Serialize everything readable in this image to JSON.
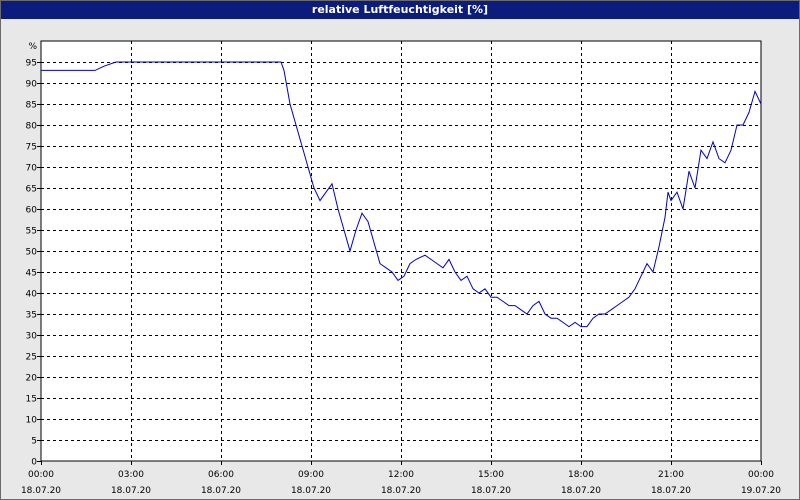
{
  "window": {
    "title": "relative Luftfeuchtigkeit [%]"
  },
  "chart_data": {
    "type": "line",
    "title": "relative Luftfeuchtigkeit [%]",
    "ylabel": "%",
    "xlabel": "",
    "ylim": [
      0,
      100
    ],
    "xlim_hours": [
      0,
      24
    ],
    "grid": true,
    "line_color": "#0000cc",
    "y_ticks": [
      "0",
      "5",
      "10",
      "15",
      "20",
      "25",
      "30",
      "35",
      "40",
      "45",
      "50",
      "55",
      "60",
      "65",
      "70",
      "75",
      "80",
      "85",
      "90",
      "95"
    ],
    "x_ticks": [
      {
        "hour": 0,
        "time": "00:00",
        "date": "18.07.20"
      },
      {
        "hour": 3,
        "time": "03:00",
        "date": "18.07.20"
      },
      {
        "hour": 6,
        "time": "06:00",
        "date": "18.07.20"
      },
      {
        "hour": 9,
        "time": "09:00",
        "date": "18.07.20"
      },
      {
        "hour": 12,
        "time": "12:00",
        "date": "18.07.20"
      },
      {
        "hour": 15,
        "time": "15:00",
        "date": "18.07.20"
      },
      {
        "hour": 18,
        "time": "18:00",
        "date": "18.07.20"
      },
      {
        "hour": 21,
        "time": "21:00",
        "date": "18.07.20"
      },
      {
        "hour": 24,
        "time": "00:00",
        "date": "19.07.20"
      }
    ],
    "series": [
      {
        "x": [
          0,
          1.8,
          2.1,
          2.5,
          3,
          4,
          5,
          6,
          7,
          8,
          8.1,
          8.3,
          8.5,
          8.7,
          8.9,
          9.1,
          9.3,
          9.5,
          9.7,
          9.9,
          10.1,
          10.3,
          10.5,
          10.7,
          10.9,
          11.1,
          11.3,
          11.5,
          11.7,
          11.9,
          12.1,
          12.3,
          12.5,
          12.8,
          13.0,
          13.2,
          13.4,
          13.6,
          13.8,
          14.0,
          14.2,
          14.4,
          14.6,
          14.8,
          15.0,
          15.2,
          15.4,
          15.6,
          15.8,
          16.0,
          16.2,
          16.4,
          16.6,
          16.8,
          17.0,
          17.2,
          17.4,
          17.6,
          17.8,
          18.0,
          18.2,
          18.4,
          18.6,
          18.8,
          19.0,
          19.2,
          19.4,
          19.6,
          19.8,
          20.0,
          20.2,
          20.4,
          20.6,
          20.8,
          20.9,
          21.0,
          21.2,
          21.4,
          21.6,
          21.8,
          22.0,
          22.2,
          22.4,
          22.6,
          22.8,
          23.0,
          23.2,
          23.4,
          23.6,
          23.8,
          24.0
        ],
        "y": [
          93,
          93,
          94,
          95,
          95,
          95,
          95,
          95,
          95,
          95,
          93,
          85,
          80,
          75,
          70,
          65,
          62,
          64,
          66,
          60,
          55,
          50,
          55,
          59,
          57,
          52,
          47,
          46,
          45,
          43,
          44,
          47,
          48,
          49,
          48,
          47,
          46,
          48,
          45,
          43,
          44,
          41,
          40,
          41,
          39,
          39,
          38,
          37,
          37,
          36,
          35,
          37,
          38,
          35,
          34,
          34,
          33,
          32,
          33,
          32,
          32,
          34,
          35,
          35,
          36,
          37,
          38,
          39,
          41,
          44,
          47,
          45,
          51,
          58,
          64,
          62,
          64,
          60,
          69,
          65,
          74,
          72,
          76,
          72,
          71,
          74,
          80,
          80,
          83,
          88,
          85
        ]
      }
    ]
  }
}
